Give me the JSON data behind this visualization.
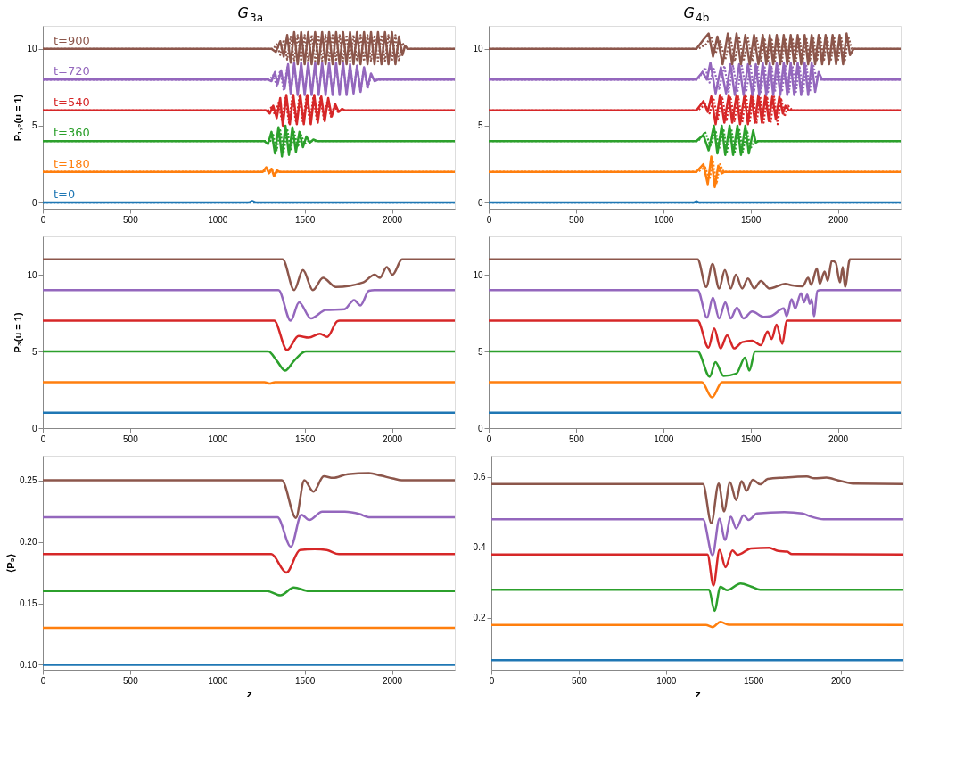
{
  "chart_data": [
    {
      "type": "line",
      "title": "G$_{3a}$",
      "ylabel": "P₁,₂(u = 1)",
      "xlim": [
        0,
        2360
      ],
      "xticks": [
        0,
        500,
        1000,
        1500,
        2000
      ],
      "ylim": [
        -0.4,
        11.5
      ],
      "yticks": [
        0,
        5,
        10
      ],
      "series": [
        {
          "name": "t=0",
          "color": "#1f77b4",
          "line_style": "solid",
          "x": [
            0,
            1180,
            1200,
            1220,
            2360
          ],
          "values": [
            0,
            0,
            0.1,
            0,
            0
          ]
        },
        {
          "color": "#1f77b4",
          "line_style": "dotted",
          "x": [
            0,
            2360
          ],
          "values": [
            0,
            0
          ]
        },
        {
          "name": "t=180",
          "color": "#ff7f0e",
          "line_style": "solid",
          "x": [
            0,
            1260,
            1280,
            1295,
            1310,
            1325,
            1340,
            1355,
            2360
          ],
          "values": [
            2,
            2,
            2.3,
            1.9,
            2.2,
            1.7,
            2.1,
            2,
            2
          ]
        },
        {
          "color": "#ff7f0e",
          "line_style": "dotted",
          "x": [
            0,
            1265,
            1285,
            1300,
            1315,
            1330,
            1345,
            2360
          ],
          "values": [
            2,
            2,
            2.15,
            1.95,
            2.1,
            1.85,
            2,
            2
          ]
        },
        {
          "name": "t=360",
          "color": "#2ca02c",
          "line_style": "solid",
          "x": [
            0,
            1270,
            1290,
            1310,
            1330,
            1350,
            1370,
            1390,
            1410,
            1430,
            1450,
            1470,
            1490,
            1510,
            1530,
            1550,
            1570,
            2360
          ],
          "values": [
            4,
            4,
            3.8,
            4.6,
            3.2,
            4.9,
            3.0,
            5.0,
            3.1,
            4.9,
            3.3,
            4.6,
            3.6,
            4.3,
            3.9,
            4.1,
            4,
            4
          ]
        },
        {
          "color": "#2ca02c",
          "line_style": "dotted",
          "x": [
            0,
            1280,
            1300,
            1320,
            1340,
            1360,
            1380,
            1400,
            1420,
            1440,
            1460,
            1480,
            1500,
            1520,
            2360
          ],
          "values": [
            4,
            4,
            3.9,
            4.4,
            3.4,
            4.7,
            3.3,
            4.8,
            3.4,
            4.6,
            3.6,
            4.4,
            3.8,
            4,
            4
          ]
        },
        {
          "name": "t=540",
          "color": "#d62728",
          "line_style": "solid",
          "x": [
            0,
            1280,
            1300,
            1320,
            1340,
            1360,
            1375,
            1395,
            1415,
            1435,
            1455,
            1475,
            1495,
            1515,
            1535,
            1555,
            1575,
            1595,
            1615,
            1635,
            1655,
            1675,
            1695,
            1715,
            1730,
            2360
          ],
          "values": [
            6,
            6,
            5.8,
            6.3,
            5.5,
            6.8,
            5.0,
            7.0,
            5.1,
            7.0,
            5.1,
            7.0,
            5.1,
            7.0,
            5.1,
            7.0,
            5.2,
            6.9,
            5.3,
            6.8,
            5.6,
            6.4,
            5.9,
            6.1,
            6,
            6
          ]
        },
        {
          "color": "#d62728",
          "line_style": "dotted",
          "x": [
            0,
            1290,
            1310,
            1330,
            1350,
            1370,
            1390,
            1410,
            1430,
            1450,
            1470,
            1490,
            1510,
            1530,
            1550,
            1570,
            1590,
            1610,
            1630,
            1650,
            1670,
            1690,
            1710,
            2360
          ],
          "values": [
            6,
            6,
            6.2,
            5.7,
            6.5,
            5.3,
            6.8,
            5.2,
            6.9,
            5.2,
            6.9,
            5.2,
            6.9,
            5.2,
            6.9,
            5.3,
            6.8,
            5.4,
            6.6,
            5.6,
            6.3,
            5.9,
            6,
            6
          ]
        },
        {
          "name": "t=720",
          "color": "#9467bd",
          "line_style": "solid",
          "x": [
            0,
            1290,
            1310,
            1330,
            1345,
            1365,
            1385,
            1405,
            1420,
            1440,
            1460,
            1480,
            1500,
            1520,
            1540,
            1560,
            1580,
            1600,
            1620,
            1640,
            1660,
            1680,
            1700,
            1720,
            1740,
            1760,
            1780,
            1800,
            1820,
            1840,
            1860,
            1880,
            1900,
            1920,
            2360
          ],
          "values": [
            8,
            8,
            7.9,
            8.5,
            7.7,
            8.6,
            7.4,
            9.0,
            7.1,
            9.1,
            7.0,
            9.1,
            7.0,
            9.1,
            7.0,
            9.1,
            7.0,
            9.1,
            7.0,
            9.1,
            7.0,
            9.1,
            7.0,
            9.1,
            7.0,
            9.0,
            7.1,
            8.9,
            7.2,
            8.8,
            7.5,
            8.4,
            7.9,
            8,
            8
          ]
        },
        {
          "color": "#9467bd",
          "line_style": "dotted",
          "x": [
            0,
            1300,
            1320,
            1340,
            1360,
            1380,
            1400,
            1420,
            1440,
            1460,
            1480,
            1500,
            1520,
            1540,
            1560,
            1580,
            1600,
            1620,
            1640,
            1660,
            1680,
            1700,
            1720,
            1740,
            1760,
            1780,
            1800,
            1820,
            1840,
            1860,
            1880,
            1900,
            2360
          ],
          "values": [
            8,
            8,
            8.3,
            7.6,
            8.6,
            7.3,
            8.8,
            7.2,
            8.9,
            7.2,
            8.9,
            7.2,
            8.9,
            7.2,
            8.9,
            7.2,
            8.9,
            7.2,
            8.9,
            7.2,
            8.9,
            7.2,
            8.9,
            7.2,
            8.9,
            7.2,
            8.9,
            7.2,
            8.8,
            7.4,
            8.2,
            8,
            8
          ]
        },
        {
          "name": "t=900",
          "color": "#8c564b",
          "line_style": "solid",
          "x": [
            0,
            1310,
            1335,
            1360,
            1380,
            1400,
            1420,
            1440,
            1460,
            1480,
            1500,
            1520,
            1540,
            1560,
            1580,
            1600,
            1620,
            1640,
            1660,
            1680,
            1700,
            1720,
            1740,
            1760,
            1780,
            1800,
            1820,
            1840,
            1860,
            1880,
            1900,
            1920,
            1940,
            1960,
            1980,
            2000,
            2020,
            2040,
            2060,
            2075,
            2090,
            2360
          ],
          "values": [
            10,
            10,
            9.8,
            10.5,
            9.5,
            10.9,
            9.1,
            11.1,
            9.0,
            11.1,
            9.0,
            11.1,
            9.0,
            11.1,
            9.0,
            11.1,
            9.0,
            11.1,
            9.0,
            11.1,
            9.0,
            11.1,
            9.0,
            11.1,
            9.0,
            11.1,
            9.0,
            11.1,
            9.0,
            11.1,
            9.0,
            11.1,
            9.0,
            11.1,
            9.0,
            11.1,
            9.0,
            10.8,
            9.6,
            10.2,
            10,
            10
          ]
        },
        {
          "color": "#8c564b",
          "line_style": "dotted",
          "x": [
            0,
            1320,
            1340,
            1360,
            1380,
            1400,
            1420,
            1440,
            1460,
            1480,
            1500,
            1520,
            1540,
            1560,
            1580,
            1600,
            1620,
            1640,
            1660,
            1680,
            1700,
            1720,
            1740,
            1760,
            1780,
            1800,
            1820,
            1840,
            1860,
            1880,
            1900,
            1920,
            1940,
            1960,
            1980,
            2000,
            2020,
            2040,
            2060,
            2080,
            2360
          ],
          "values": [
            10,
            10,
            10.3,
            9.6,
            10.6,
            9.3,
            10.8,
            9.2,
            10.9,
            9.2,
            10.9,
            9.2,
            10.9,
            9.2,
            10.9,
            9.2,
            10.9,
            9.2,
            10.9,
            9.2,
            10.9,
            9.2,
            10.9,
            9.2,
            10.9,
            9.2,
            10.9,
            9.2,
            10.9,
            9.2,
            10.9,
            9.2,
            10.9,
            9.2,
            10.9,
            9.2,
            10.9,
            9.2,
            10.4,
            10,
            10
          ]
        }
      ]
    },
    {
      "type": "line",
      "title": "G$_{4b}$",
      "xlim": [
        0,
        2360
      ],
      "xticks": [
        0,
        500,
        1000,
        1500,
        2000
      ],
      "ylim": [
        -0.4,
        11.5
      ],
      "yticks": [
        0,
        5,
        10
      ],
      "series": [
        {
          "color": "#1f77b4",
          "line_style": "solid",
          "x": [
            0,
            1175,
            1190,
            1205,
            2360
          ],
          "values": [
            0,
            0,
            0.08,
            0,
            0
          ]
        },
        {
          "color": "#1f77b4",
          "line_style": "dotted",
          "x": [
            0,
            2360
          ],
          "values": [
            0,
            0
          ]
        },
        {
          "color": "#ff7f0e",
          "line_style": "solid",
          "x": [
            0,
            1190,
            1230,
            1255,
            1275,
            1295,
            1315,
            1335,
            1350,
            2360
          ],
          "values": [
            2,
            2,
            2.5,
            1.2,
            3.0,
            1.0,
            2.4,
            1.9,
            2,
            2
          ]
        },
        {
          "color": "#ff7f0e",
          "line_style": "dotted",
          "x": [
            0,
            1200,
            1240,
            1265,
            1285,
            1305,
            1325,
            1345,
            2360
          ],
          "values": [
            2,
            2,
            2.3,
            1.5,
            2.7,
            1.2,
            2.5,
            2,
            2
          ]
        },
        {
          "color": "#2ca02c",
          "line_style": "solid",
          "x": [
            0,
            1190,
            1230,
            1260,
            1290,
            1310,
            1335,
            1355,
            1380,
            1400,
            1425,
            1445,
            1470,
            1490,
            1515,
            1530,
            1545,
            2360
          ],
          "values": [
            4,
            4,
            4.4,
            3.4,
            5.0,
            3.2,
            5.0,
            3.1,
            5.0,
            3.1,
            5.0,
            3.1,
            5.0,
            3.2,
            4.7,
            3.9,
            4,
            4
          ]
        },
        {
          "color": "#2ca02c",
          "line_style": "dotted",
          "x": [
            0,
            1200,
            1240,
            1270,
            1300,
            1320,
            1345,
            1365,
            1390,
            1410,
            1435,
            1455,
            1480,
            1500,
            1520,
            2360
          ],
          "values": [
            4,
            4,
            4.6,
            3.7,
            4.7,
            3.5,
            4.8,
            3.3,
            4.8,
            3.3,
            4.8,
            3.3,
            4.7,
            3.5,
            4,
            4
          ]
        },
        {
          "color": "#d62728",
          "line_style": "solid",
          "x": [
            0,
            1190,
            1230,
            1255,
            1275,
            1300,
            1325,
            1350,
            1375,
            1395,
            1420,
            1440,
            1465,
            1485,
            1505,
            1525,
            1545,
            1565,
            1585,
            1605,
            1625,
            1645,
            1665,
            1685,
            1700,
            1720,
            2360
          ],
          "values": [
            6,
            6,
            6.6,
            5.9,
            6.9,
            5.1,
            7.0,
            5.2,
            7.0,
            5.2,
            7.0,
            5.1,
            7.0,
            5.1,
            7.0,
            5.2,
            7.0,
            5.2,
            7.0,
            5.3,
            6.9,
            5.4,
            6.9,
            5.8,
            6.3,
            6,
            6
          ]
        },
        {
          "color": "#d62728",
          "line_style": "dotted",
          "x": [
            0,
            1200,
            1240,
            1265,
            1290,
            1312,
            1337,
            1362,
            1385,
            1408,
            1430,
            1452,
            1475,
            1495,
            1515,
            1535,
            1555,
            1575,
            1595,
            1615,
            1635,
            1655,
            1675,
            1695,
            1715,
            1740,
            2360
          ],
          "values": [
            6,
            6,
            6.4,
            5.8,
            6.7,
            5.4,
            6.9,
            5.3,
            6.9,
            5.3,
            6.9,
            5.2,
            6.9,
            5.2,
            6.9,
            5.2,
            6.9,
            5.2,
            6.9,
            5.2,
            6.9,
            5.1,
            6.8,
            5.6,
            6.3,
            6,
            6
          ]
        },
        {
          "color": "#9467bd",
          "line_style": "solid",
          "x": [
            0,
            1190,
            1225,
            1250,
            1270,
            1300,
            1330,
            1360,
            1385,
            1410,
            1435,
            1460,
            1485,
            1510,
            1530,
            1550,
            1570,
            1590,
            1610,
            1630,
            1650,
            1670,
            1690,
            1710,
            1730,
            1750,
            1770,
            1790,
            1810,
            1830,
            1850,
            1870,
            1890,
            1910,
            2360
          ],
          "values": [
            8,
            8,
            8.5,
            8.0,
            9.1,
            7.1,
            8.8,
            7.1,
            9.0,
            7.0,
            9.0,
            7.0,
            9.0,
            7.0,
            9.0,
            7.0,
            9.1,
            7.0,
            9.1,
            7.0,
            9.1,
            7.0,
            9.1,
            7.0,
            9.1,
            7.0,
            9.1,
            7.0,
            9.1,
            7.0,
            9.1,
            7.2,
            8.5,
            8,
            8
          ]
        },
        {
          "color": "#9467bd",
          "line_style": "dotted",
          "x": [
            0,
            1200,
            1240,
            1265,
            1290,
            1320,
            1350,
            1375,
            1400,
            1425,
            1450,
            1475,
            1500,
            1520,
            1540,
            1560,
            1580,
            1600,
            1620,
            1640,
            1660,
            1680,
            1700,
            1720,
            1740,
            1760,
            1780,
            1800,
            1820,
            1840,
            1860,
            1880,
            2360
          ],
          "values": [
            8,
            8,
            8.8,
            7.8,
            8.7,
            7.4,
            8.9,
            7.2,
            8.9,
            7.2,
            8.9,
            7.2,
            8.9,
            7.2,
            8.9,
            7.2,
            8.9,
            7.2,
            8.9,
            7.2,
            8.9,
            7.2,
            8.9,
            7.2,
            8.9,
            7.2,
            8.9,
            7.2,
            8.9,
            7.2,
            8.9,
            8,
            8
          ]
        },
        {
          "color": "#8c564b",
          "line_style": "solid",
          "x": [
            0,
            1190,
            1230,
            1260,
            1285,
            1310,
            1340,
            1370,
            1395,
            1420,
            1445,
            1470,
            1495,
            1520,
            1545,
            1570,
            1590,
            1610,
            1630,
            1650,
            1670,
            1690,
            1710,
            1730,
            1750,
            1770,
            1790,
            1810,
            1830,
            1850,
            1870,
            1890,
            1910,
            1930,
            1950,
            1970,
            1990,
            2010,
            2030,
            2050,
            2070,
            2090,
            2360
          ],
          "values": [
            10,
            10,
            10.6,
            11.0,
            9.5,
            10.8,
            9.0,
            11.0,
            9.0,
            11.0,
            9.0,
            10.9,
            9.0,
            10.9,
            9.0,
            10.9,
            9.0,
            10.9,
            9.0,
            10.9,
            9.0,
            10.9,
            9.0,
            10.9,
            9.0,
            10.9,
            9.0,
            10.9,
            9.0,
            10.9,
            9.0,
            10.9,
            9.0,
            10.9,
            9.0,
            10.9,
            9.0,
            10.9,
            9.0,
            11.0,
            9.6,
            10,
            10
          ]
        },
        {
          "color": "#8c564b",
          "line_style": "dotted",
          "x": [
            0,
            1200,
            1245,
            1275,
            1300,
            1325,
            1355,
            1385,
            1410,
            1435,
            1460,
            1485,
            1510,
            1535,
            1560,
            1580,
            1600,
            1620,
            1640,
            1660,
            1680,
            1700,
            1720,
            1740,
            1760,
            1780,
            1800,
            1820,
            1840,
            1860,
            1880,
            1900,
            1920,
            1940,
            1960,
            1980,
            2000,
            2020,
            2040,
            2060,
            2080,
            2360
          ],
          "values": [
            10,
            10,
            10.3,
            10.8,
            9.7,
            10.5,
            9.3,
            10.7,
            9.2,
            10.7,
            9.2,
            10.7,
            9.2,
            10.7,
            9.2,
            10.7,
            9.2,
            10.7,
            9.2,
            10.7,
            9.2,
            10.7,
            9.2,
            10.7,
            9.2,
            10.7,
            9.2,
            10.7,
            9.2,
            10.7,
            9.2,
            10.7,
            9.2,
            10.7,
            9.2,
            10.7,
            9.2,
            10.7,
            9.2,
            10.8,
            10,
            10
          ]
        }
      ]
    },
    {
      "type": "line",
      "ylabel": "P₃(u = 1)",
      "xlim": [
        0,
        2360
      ],
      "xticks": [
        0,
        500,
        1000,
        1500,
        2000
      ],
      "ylim": [
        0,
        12.5
      ],
      "yticks": [
        0,
        5,
        10
      ],
      "series": [
        {
          "color": "#1f77b4",
          "x": [
            0,
            2360
          ],
          "values": [
            1,
            1
          ]
        },
        {
          "color": "#ff7f0e",
          "x": [
            0,
            1270,
            1300,
            1330,
            2360
          ],
          "values": [
            3,
            3,
            2.9,
            3,
            3
          ]
        },
        {
          "color": "#2ca02c",
          "x": [
            0,
            1292,
            1340,
            1388,
            1440,
            1506,
            2360
          ],
          "values": [
            5,
            5,
            4.4,
            3.75,
            4.4,
            5,
            5
          ]
        },
        {
          "color": "#d62728",
          "x": [
            0,
            1325,
            1399,
            1465,
            1523,
            1588,
            1630,
            1687,
            1700,
            2360
          ],
          "values": [
            7,
            7,
            5.1,
            6.0,
            5.9,
            6.15,
            5.95,
            6.97,
            7,
            7
          ]
        },
        {
          "color": "#9467bd",
          "x": [
            0,
            1350,
            1420,
            1468,
            1536,
            1621,
            1728,
            1783,
            1819,
            1868,
            1900,
            2360
          ],
          "values": [
            9,
            9,
            7.0,
            8.2,
            7.15,
            7.7,
            7.75,
            8.35,
            8.0,
            8.95,
            9,
            9
          ]
        },
        {
          "color": "#8c564b",
          "x": [
            0,
            1374,
            1440,
            1490,
            1547,
            1605,
            1679,
            1835,
            1901,
            1931,
            1970,
            2003,
            2058,
            2360
          ],
          "values": [
            11,
            11,
            9.0,
            10.3,
            9.0,
            9.8,
            9.2,
            9.5,
            10.0,
            9.8,
            10.5,
            10.0,
            11,
            11
          ]
        }
      ]
    },
    {
      "type": "line",
      "xlim": [
        0,
        2360
      ],
      "xticks": [
        0,
        500,
        1000,
        1500,
        2000
      ],
      "ylim": [
        0,
        12.5
      ],
      "yticks": [
        0,
        5,
        10
      ],
      "series": [
        {
          "color": "#1f77b4",
          "x": [
            0,
            2360
          ],
          "values": [
            1,
            1
          ]
        },
        {
          "color": "#ff7f0e",
          "x": [
            0,
            1221,
            1279,
            1337,
            2360
          ],
          "values": [
            3,
            3,
            2.0,
            3,
            3
          ]
        },
        {
          "color": "#2ca02c",
          "x": [
            0,
            1197,
            1266,
            1299,
            1345,
            1419,
            1468,
            1493,
            1526,
            2360
          ],
          "values": [
            5,
            5,
            3.35,
            4.3,
            3.4,
            3.55,
            4.6,
            3.75,
            5,
            5
          ]
        },
        {
          "color": "#d62728",
          "x": [
            0,
            1197,
            1259,
            1292,
            1328,
            1366,
            1406,
            1452,
            1509,
            1559,
            1597,
            1621,
            1649,
            1682,
            1707,
            2360
          ],
          "values": [
            7,
            7,
            5.25,
            6.5,
            5.2,
            6.05,
            5.2,
            5.6,
            5.7,
            5.4,
            6.3,
            5.8,
            6.75,
            5.5,
            7,
            7
          ]
        },
        {
          "color": "#9467bd",
          "x": [
            0,
            1197,
            1251,
            1284,
            1320,
            1356,
            1386,
            1422,
            1460,
            1509,
            1575,
            1616,
            1690,
            1707,
            1735,
            1756,
            1789,
            1806,
            1825,
            1839,
            1850,
            1863,
            1883,
            1900,
            2360
          ],
          "values": [
            9,
            9,
            7.2,
            8.5,
            7.15,
            8.2,
            7.15,
            7.85,
            7.15,
            7.6,
            7.25,
            7.3,
            7.8,
            7.3,
            8.4,
            7.8,
            8.8,
            8.2,
            8.7,
            8.1,
            8.4,
            7.3,
            8.95,
            9,
            9
          ]
        },
        {
          "color": "#8c564b",
          "x": [
            0,
            1197,
            1246,
            1282,
            1320,
            1353,
            1386,
            1416,
            1452,
            1485,
            1521,
            1559,
            1608,
            1699,
            1740,
            1798,
            1830,
            1847,
            1880,
            1896,
            1924,
            1942,
            1965,
            1987,
            2012,
            2028,
            2041,
            2069,
            2360
          ],
          "values": [
            11,
            11,
            9.2,
            10.7,
            9.1,
            10.3,
            9.1,
            10.0,
            9.1,
            9.75,
            9.1,
            9.6,
            9.1,
            9.4,
            9.3,
            9.25,
            9.8,
            9.35,
            10.4,
            9.4,
            10.2,
            9.6,
            10.9,
            10.8,
            9.5,
            10.5,
            9.2,
            11,
            11
          ]
        }
      ]
    },
    {
      "type": "line",
      "xlabel": "z",
      "ylabel": "⟨P₃⟩",
      "xlim": [
        0,
        2360
      ],
      "xticks": [
        0,
        500,
        1000,
        1500,
        2000
      ],
      "ylim": [
        0.096,
        0.27
      ],
      "yticks": [
        {
          "value": 0.1,
          "label": "0.10"
        },
        0.15,
        {
          "value": 0.2,
          "label": "0.20"
        },
        0.25
      ],
      "series": [
        {
          "color": "#1f77b4",
          "x": [
            0,
            2360
          ],
          "values": [
            0.1,
            0.1
          ]
        },
        {
          "color": "#ff7f0e",
          "x": [
            0,
            2360
          ],
          "values": [
            0.13,
            0.13
          ]
        },
        {
          "color": "#2ca02c",
          "x": [
            0,
            1284,
            1361,
            1438,
            1524,
            2360
          ],
          "values": [
            0.16,
            0.16,
            0.1565,
            0.1628,
            0.16,
            0.16
          ]
        },
        {
          "color": "#d62728",
          "x": [
            0,
            1309,
            1395,
            1473,
            1558,
            1627,
            1696,
            2360
          ],
          "values": [
            0.19,
            0.19,
            0.175,
            0.1933,
            0.194,
            0.1933,
            0.19,
            0.19
          ]
        },
        {
          "color": "#9467bd",
          "x": [
            0,
            1344,
            1421,
            1481,
            1527,
            1601,
            1730,
            1816,
            1868,
            2360
          ],
          "values": [
            0.22,
            0.22,
            0.196,
            0.222,
            0.2178,
            0.2245,
            0.2245,
            0.2225,
            0.22,
            0.22
          ]
        },
        {
          "color": "#8c564b",
          "x": [
            0,
            1369,
            1450,
            1498,
            1550,
            1610,
            1662,
            1747,
            1868,
            1936,
            2005,
            2057,
            2360
          ],
          "values": [
            0.25,
            0.25,
            0.2195,
            0.25,
            0.2408,
            0.2533,
            0.252,
            0.255,
            0.2558,
            0.2538,
            0.2515,
            0.25,
            0.25
          ]
        }
      ]
    },
    {
      "type": "line",
      "xlabel": "z",
      "xlim": [
        0,
        2360
      ],
      "xticks": [
        0,
        500,
        1000,
        1500,
        2000
      ],
      "ylim": [
        0.053,
        0.66
      ],
      "yticks": [
        0.2,
        0.4,
        0.6
      ],
      "series": [
        {
          "color": "#1f77b4",
          "x": [
            0,
            2360
          ],
          "values": [
            0.08,
            0.08
          ]
        },
        {
          "color": "#ff7f0e",
          "x": [
            0,
            1229,
            1267,
            1312,
            1359,
            2360
          ],
          "values": [
            0.18,
            0.18,
            0.174,
            0.189,
            0.181,
            0.18
          ]
        },
        {
          "color": "#2ca02c",
          "x": [
            0,
            1247,
            1278,
            1312,
            1350,
            1428,
            1488,
            1540,
            2360
          ],
          "values": [
            0.28,
            0.28,
            0.22,
            0.288,
            0.279,
            0.298,
            0.289,
            0.28,
            0.28
          ]
        },
        {
          "color": "#d62728",
          "x": [
            0,
            1238,
            1272,
            1307,
            1341,
            1381,
            1410,
            1488,
            1591,
            1643,
            1695,
            1721,
            2360
          ],
          "values": [
            0.38,
            0.38,
            0.292,
            0.393,
            0.344,
            0.391,
            0.379,
            0.397,
            0.399,
            0.39,
            0.388,
            0.381,
            0.38
          ]
        },
        {
          "color": "#9467bd",
          "x": [
            0,
            1212,
            1267,
            1307,
            1338,
            1372,
            1402,
            1445,
            1474,
            1522,
            1678,
            1781,
            1833,
            1902,
            2360
          ],
          "values": [
            0.48,
            0.48,
            0.378,
            0.482,
            0.421,
            0.487,
            0.454,
            0.491,
            0.478,
            0.496,
            0.5,
            0.496,
            0.487,
            0.48,
            0.48
          ]
        },
        {
          "color": "#8c564b",
          "x": [
            0,
            1212,
            1260,
            1302,
            1333,
            1367,
            1402,
            1433,
            1462,
            1497,
            1540,
            1583,
            1678,
            1807,
            1850,
            1919,
            1988,
            2083,
            2360
          ],
          "values": [
            0.58,
            0.58,
            0.469,
            0.581,
            0.502,
            0.585,
            0.534,
            0.588,
            0.561,
            0.592,
            0.579,
            0.594,
            0.598,
            0.601,
            0.596,
            0.598,
            0.59,
            0.581,
            0.58
          ]
        }
      ]
    }
  ]
}
